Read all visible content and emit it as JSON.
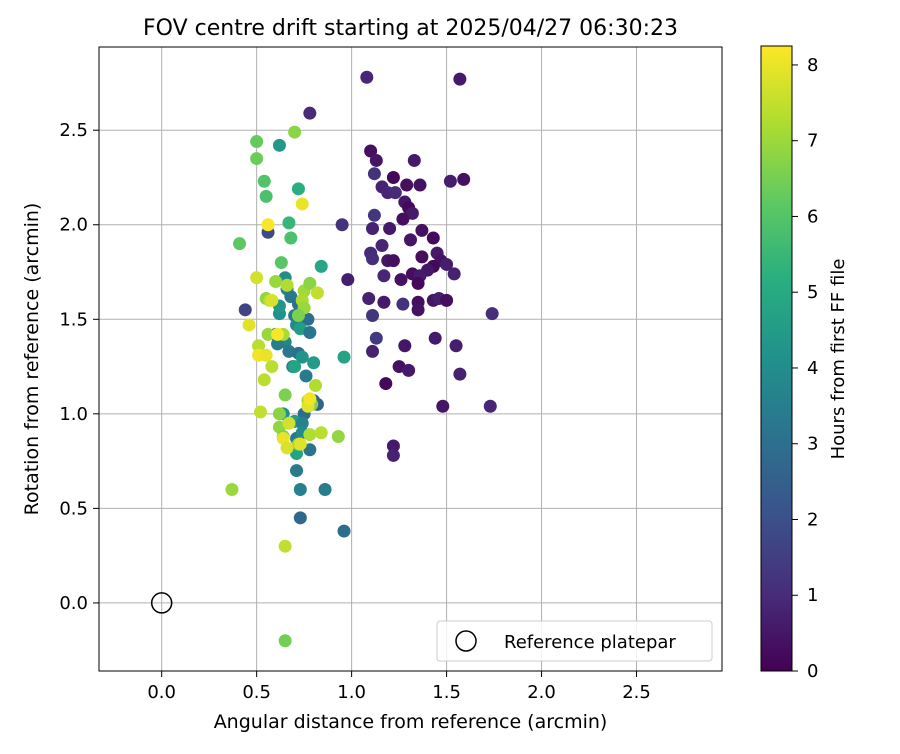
{
  "chart_data": {
    "type": "scatter",
    "title": "FOV centre drift starting at 2025/04/27 06:30:23",
    "xlabel": "Angular distance from reference (arcmin)",
    "ylabel": "Rotation from reference (arcmin)",
    "xlim": [
      -0.33,
      2.95
    ],
    "ylim": [
      -0.36,
      2.94
    ],
    "xticks": [
      0.0,
      0.5,
      1.0,
      1.5,
      2.0,
      2.5
    ],
    "yticks": [
      0.0,
      0.5,
      1.0,
      1.5,
      2.0,
      2.5
    ],
    "xtick_labels": [
      "0.0",
      "0.5",
      "1.0",
      "1.5",
      "2.0",
      "2.5"
    ],
    "ytick_labels": [
      "0.0",
      "0.5",
      "1.0",
      "1.5",
      "2.0",
      "2.5"
    ],
    "grid": true,
    "legend": {
      "label": "Reference platepar",
      "location": "lower-right"
    },
    "reference_point": {
      "x": 0.0,
      "y": 0.0
    },
    "colorbar": {
      "label": "Hours from first FF file",
      "colormap": "viridis",
      "range": [
        0,
        8.25
      ],
      "ticks": [
        0,
        1,
        2,
        3,
        4,
        5,
        6,
        7,
        8
      ],
      "tick_labels": [
        "0",
        "1",
        "2",
        "3",
        "4",
        "5",
        "6",
        "7",
        "8"
      ]
    },
    "columns": [
      "x",
      "y",
      "hours"
    ],
    "points": [
      [
        1.08,
        2.78,
        0.9
      ],
      [
        1.57,
        2.77,
        0.6
      ],
      [
        0.78,
        2.59,
        1.0
      ],
      [
        1.52,
        2.23,
        0.7
      ],
      [
        1.59,
        2.24,
        0.4
      ],
      [
        1.1,
        2.39,
        0.3
      ],
      [
        1.13,
        2.34,
        0.5
      ],
      [
        1.33,
        2.34,
        0.6
      ],
      [
        1.12,
        2.27,
        1.2
      ],
      [
        1.16,
        2.2,
        0.8
      ],
      [
        1.19,
        2.17,
        0.9
      ],
      [
        1.22,
        2.25,
        0.2
      ],
      [
        1.29,
        2.21,
        0.3
      ],
      [
        1.36,
        2.21,
        0.4
      ],
      [
        1.23,
        2.17,
        1.0
      ],
      [
        1.28,
        2.12,
        0.5
      ],
      [
        1.3,
        2.09,
        0.2
      ],
      [
        1.32,
        2.06,
        0.6
      ],
      [
        1.27,
        2.03,
        0.3
      ],
      [
        1.12,
        2.05,
        1.3
      ],
      [
        0.95,
        2.0,
        1.2
      ],
      [
        1.11,
        1.98,
        0.8
      ],
      [
        1.2,
        1.98,
        0.6
      ],
      [
        1.37,
        1.97,
        0.4
      ],
      [
        1.31,
        1.92,
        0.5
      ],
      [
        1.43,
        1.93,
        0.2
      ],
      [
        1.16,
        1.89,
        0.9
      ],
      [
        1.1,
        1.85,
        1.0
      ],
      [
        1.37,
        1.83,
        0.3
      ],
      [
        1.45,
        1.85,
        0.6
      ],
      [
        1.11,
        1.82,
        1.1
      ],
      [
        1.19,
        1.81,
        0.5
      ],
      [
        1.22,
        1.81,
        0.3
      ],
      [
        1.47,
        1.81,
        0.4
      ],
      [
        1.5,
        1.79,
        0.7
      ],
      [
        1.43,
        1.78,
        0.2
      ],
      [
        1.4,
        1.76,
        0.5
      ],
      [
        1.54,
        1.74,
        0.8
      ],
      [
        1.32,
        1.74,
        0.3
      ],
      [
        1.36,
        1.73,
        0.6
      ],
      [
        1.17,
        1.73,
        0.9
      ],
      [
        1.26,
        1.71,
        0.4
      ],
      [
        1.35,
        1.69,
        0.2
      ],
      [
        0.98,
        1.71,
        0.7
      ],
      [
        1.09,
        1.61,
        0.8
      ],
      [
        1.17,
        1.59,
        0.6
      ],
      [
        1.27,
        1.58,
        1.2
      ],
      [
        1.35,
        1.59,
        0.3
      ],
      [
        1.35,
        1.55,
        0.4
      ],
      [
        1.43,
        1.6,
        0.5
      ],
      [
        1.46,
        1.61,
        0.7
      ],
      [
        1.5,
        1.6,
        0.3
      ],
      [
        1.74,
        1.53,
        1.1
      ],
      [
        1.11,
        1.52,
        1.3
      ],
      [
        1.13,
        1.4,
        1.4
      ],
      [
        1.44,
        1.4,
        0.6
      ],
      [
        1.28,
        1.36,
        0.5
      ],
      [
        1.11,
        1.33,
        0.8
      ],
      [
        1.55,
        1.36,
        0.7
      ],
      [
        1.25,
        1.25,
        0.4
      ],
      [
        1.3,
        1.23,
        0.6
      ],
      [
        1.57,
        1.21,
        0.8
      ],
      [
        1.18,
        1.16,
        0.2
      ],
      [
        1.48,
        1.04,
        0.5
      ],
      [
        1.73,
        1.04,
        0.9
      ],
      [
        1.22,
        0.83,
        0.6
      ],
      [
        1.22,
        0.78,
        0.8
      ],
      [
        0.44,
        1.55,
        1.7
      ],
      [
        0.56,
        1.96,
        1.9
      ],
      [
        0.62,
        2.42,
        4.4
      ],
      [
        0.72,
        2.19,
        5.2
      ],
      [
        0.67,
        2.01,
        5.5
      ],
      [
        0.68,
        1.93,
        5.9
      ],
      [
        0.84,
        1.78,
        4.9
      ],
      [
        0.65,
        1.72,
        4.0
      ],
      [
        0.66,
        1.66,
        3.6
      ],
      [
        0.68,
        1.62,
        3.3
      ],
      [
        0.72,
        1.58,
        3.1
      ],
      [
        0.62,
        1.53,
        4.2
      ],
      [
        0.7,
        1.52,
        3.4
      ],
      [
        0.71,
        1.47,
        3.9
      ],
      [
        0.77,
        1.5,
        3.0
      ],
      [
        0.73,
        1.45,
        4.6
      ],
      [
        0.78,
        1.43,
        3.2
      ],
      [
        0.6,
        1.42,
        4.1
      ],
      [
        0.65,
        1.38,
        3.8
      ],
      [
        0.61,
        1.37,
        3.5
      ],
      [
        0.67,
        1.33,
        3.3
      ],
      [
        0.72,
        1.32,
        3.1
      ],
      [
        0.74,
        1.3,
        4.3
      ],
      [
        0.69,
        1.25,
        3.7
      ],
      [
        0.7,
        1.25,
        4.8
      ],
      [
        0.8,
        1.27,
        4.5
      ],
      [
        0.76,
        1.2,
        3.4
      ],
      [
        0.96,
        1.3,
        4.8
      ],
      [
        0.8,
        1.07,
        2.8
      ],
      [
        0.82,
        1.05,
        2.6
      ],
      [
        0.75,
        1.0,
        3.0
      ],
      [
        0.64,
        1.0,
        4.2
      ],
      [
        0.7,
        0.96,
        4.6
      ],
      [
        0.74,
        0.95,
        3.7
      ],
      [
        0.71,
        0.87,
        3.3
      ],
      [
        0.74,
        0.9,
        4.0
      ],
      [
        0.78,
        0.81,
        3.2
      ],
      [
        0.71,
        0.7,
        3.4
      ],
      [
        0.73,
        0.6,
        3.6
      ],
      [
        0.86,
        0.6,
        3.5
      ],
      [
        0.73,
        0.45,
        2.8
      ],
      [
        0.96,
        0.38,
        3.0
      ],
      [
        0.71,
        0.79,
        4.8
      ],
      [
        0.62,
        1.57,
        4.4
      ],
      [
        0.5,
        2.44,
        6.3
      ],
      [
        0.7,
        2.49,
        6.8
      ],
      [
        0.5,
        2.35,
        6.4
      ],
      [
        0.54,
        2.23,
        6.0
      ],
      [
        0.55,
        2.15,
        5.9
      ],
      [
        0.41,
        1.9,
        6.2
      ],
      [
        0.63,
        1.8,
        6.1
      ],
      [
        0.6,
        1.7,
        7.0
      ],
      [
        0.66,
        1.68,
        7.3
      ],
      [
        0.75,
        1.65,
        7.1
      ],
      [
        0.78,
        1.69,
        6.8
      ],
      [
        0.82,
        1.64,
        7.5
      ],
      [
        0.55,
        1.61,
        6.9
      ],
      [
        0.57,
        1.6,
        7.4
      ],
      [
        0.74,
        1.6,
        7.2
      ],
      [
        0.75,
        1.56,
        7.0
      ],
      [
        0.72,
        1.52,
        6.6
      ],
      [
        0.56,
        1.42,
        7.0
      ],
      [
        0.64,
        1.42,
        7.2
      ],
      [
        0.51,
        1.36,
        7.4
      ],
      [
        0.58,
        1.25,
        7.4
      ],
      [
        0.54,
        1.18,
        7.4
      ],
      [
        0.81,
        1.15,
        7.3
      ],
      [
        0.65,
        1.1,
        6.6
      ],
      [
        0.77,
        1.07,
        7.2
      ],
      [
        0.79,
        1.05,
        6.7
      ],
      [
        0.52,
        1.01,
        7.5
      ],
      [
        0.62,
        0.93,
        6.9
      ],
      [
        0.64,
        0.88,
        6.6
      ],
      [
        0.72,
        0.84,
        7.0
      ],
      [
        0.78,
        0.89,
        7.3
      ],
      [
        0.84,
        0.9,
        7.4
      ],
      [
        0.93,
        0.88,
        6.9
      ],
      [
        0.37,
        0.6,
        7.0
      ],
      [
        0.65,
        0.3,
        7.5
      ],
      [
        0.65,
        -0.2,
        6.5
      ],
      [
        0.62,
        1.0,
        6.8
      ],
      [
        0.56,
        2.0,
        8.2
      ],
      [
        0.74,
        2.11,
        8.0
      ],
      [
        0.5,
        1.72,
        7.7
      ],
      [
        0.46,
        1.47,
        7.9
      ],
      [
        0.58,
        1.6,
        7.8
      ],
      [
        0.61,
        1.42,
        8.2
      ],
      [
        0.51,
        1.31,
        8.1
      ],
      [
        0.55,
        1.31,
        8.0
      ],
      [
        0.77,
        1.04,
        7.9
      ],
      [
        0.78,
        1.08,
        8.1
      ],
      [
        0.64,
        0.87,
        8.0
      ],
      [
        0.66,
        0.82,
        7.8
      ],
      [
        0.67,
        0.95,
        7.7
      ],
      [
        0.73,
        0.84,
        7.9
      ]
    ]
  }
}
